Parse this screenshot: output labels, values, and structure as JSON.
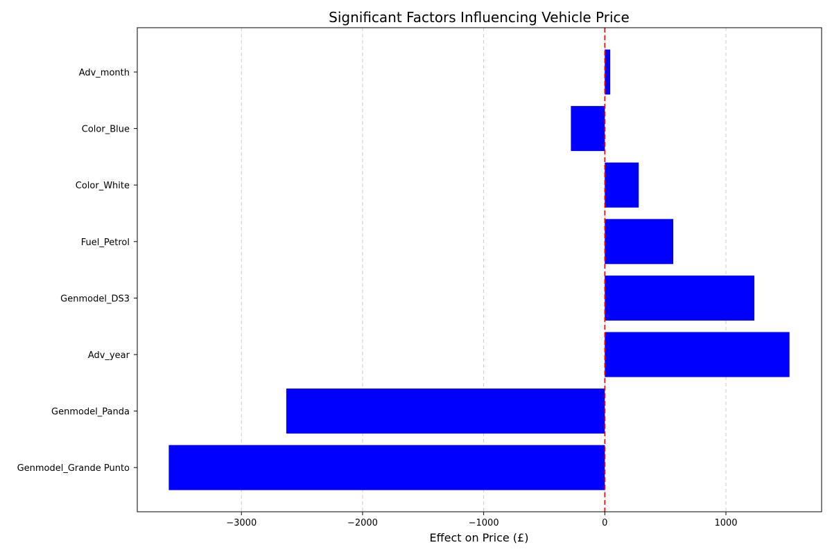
{
  "chart_data": {
    "type": "bar",
    "orientation": "horizontal",
    "title": "Significant Factors Influencing Vehicle Price",
    "xlabel": "Effect on Price (£)",
    "ylabel": "",
    "categories": [
      "Adv_month",
      "Color_Blue",
      "Color_White",
      "Fuel_Petrol",
      "Genmodel_DS3",
      "Adv_year",
      "Genmodel_Panda",
      "Genmodel_Grande Punto"
    ],
    "values": [
      45,
      -280,
      280,
      565,
      1235,
      1525,
      -2630,
      -3600
    ],
    "xlim": [
      -3860,
      1790
    ],
    "xticks": [
      -3000,
      -2000,
      -1000,
      0,
      1000
    ],
    "xtick_labels": [
      "−3000",
      "−2000",
      "−1000",
      "0",
      "1000"
    ],
    "bar_color": "#0000ff",
    "reference_line": {
      "x": 0,
      "color": "#ff0000",
      "style": "dashed"
    },
    "grid": {
      "x": true,
      "y": false,
      "style": "dashed"
    }
  }
}
